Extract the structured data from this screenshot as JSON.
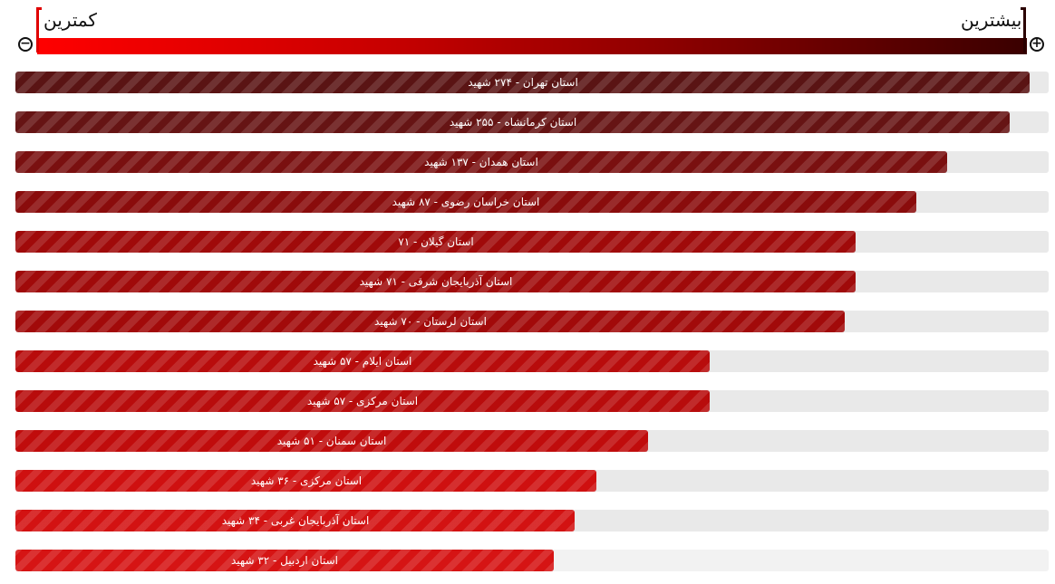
{
  "legend": {
    "low_label": "کمترین",
    "high_label": "بیشترین",
    "zoom_out_symbol": "−",
    "zoom_in_symbol": "+"
  },
  "chart_data": {
    "type": "bar",
    "orientation": "horizontal",
    "xlim": [
      0,
      280
    ],
    "color_scale": [
      "#ff0000",
      "#3a0000"
    ],
    "categories": [
      "استان تهران - ۲۷۴ شهید",
      "استان کرمانشاه - ۲۵۵ شهید",
      "استان همدان - ۱۳۷ شهید",
      "استان خراسان رضوی - ۸۷ شهید",
      "استان گیلان - ۷۱",
      "استان آذربایجان شرقی - ۷۱ شهید",
      "استان لرستان - ۷۰ شهید",
      "استان ایلام - ۵۷ شهید",
      "استان مرکزی - ۵۷ شهید",
      "استان سمنان - ۵۱ شهید",
      "استان مرکزی - ۳۶ شهید",
      "استان آذربایجان غربی - ۳۴ شهید",
      "استان اردبیل - ۳۲ شهید"
    ],
    "values": [
      274,
      255,
      137,
      87,
      71,
      71,
      70,
      57,
      57,
      51,
      36,
      34,
      32
    ],
    "fill_fraction": [
      0.982,
      0.962,
      0.902,
      0.872,
      0.813,
      0.813,
      0.803,
      0.672,
      0.672,
      0.612,
      0.562,
      0.541,
      0.521
    ],
    "colors": [
      "#5a1414",
      "#661414",
      "#7a1010",
      "#8a0c0c",
      "#a00a0a",
      "#a00a0a",
      "#a20a0a",
      "#b80c0c",
      "#b80c0c",
      "#c00c0c",
      "#cf1010",
      "#d31212",
      "#d61414"
    ]
  }
}
